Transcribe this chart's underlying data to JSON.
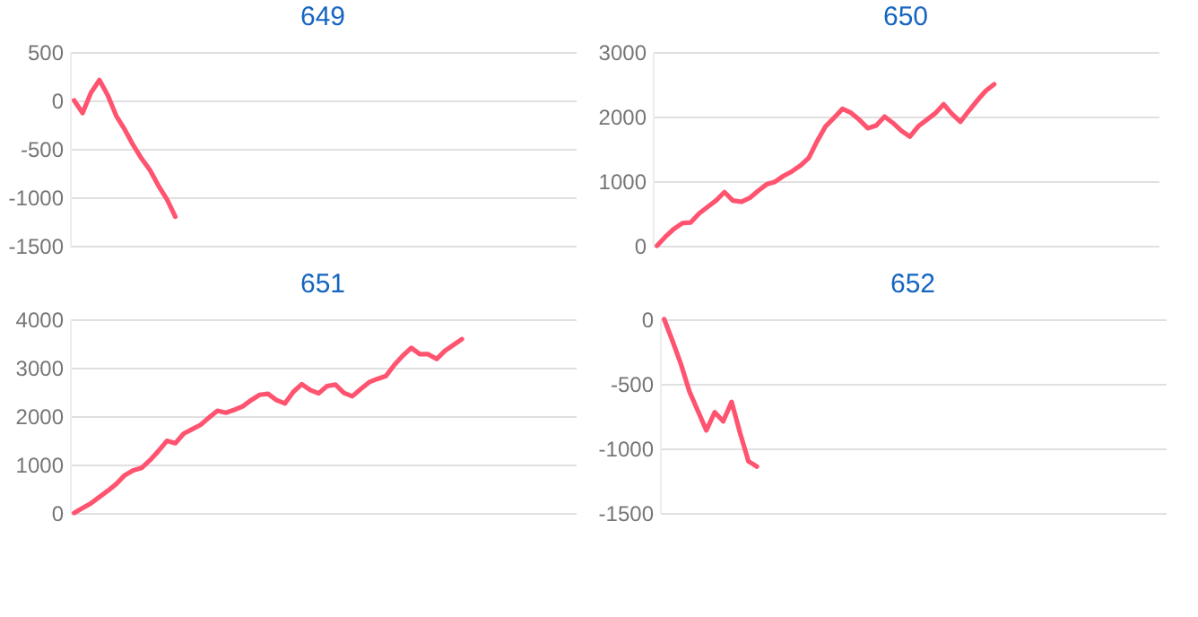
{
  "chart_data": [
    {
      "type": "line",
      "title": "649",
      "categories": [
        null,
        null,
        null,
        null,
        null,
        null,
        null,
        null,
        null,
        null,
        null,
        null,
        null,
        null,
        null,
        null,
        null,
        null,
        null,
        null,
        null,
        null,
        null,
        null,
        null,
        null,
        null,
        null,
        null,
        null,
        null,
        null,
        null,
        null,
        null,
        null,
        null,
        null,
        null,
        null,
        null,
        null,
        null,
        null,
        null,
        null,
        null,
        null,
        null,
        null,
        null,
        null,
        null,
        null,
        null,
        null,
        null,
        null,
        null,
        null
      ],
      "series": [
        {
          "color": "#ff5470",
          "values": [
            0,
            -130,
            80,
            210,
            50,
            -160,
            -300,
            -460,
            -600,
            -720,
            -880,
            -1020,
            -1200,
            null,
            null,
            null,
            null,
            null,
            null,
            null,
            null,
            null,
            null,
            null,
            null,
            null,
            null,
            null,
            null,
            null,
            null,
            null,
            null,
            null,
            null,
            null,
            null,
            null,
            null,
            null,
            null,
            null,
            null,
            null,
            null,
            null,
            null,
            null,
            null,
            null,
            null,
            null,
            null,
            null,
            null,
            null,
            null,
            null,
            null,
            null
          ]
        }
      ],
      "ylim": [
        -1500,
        500
      ],
      "yticks": [
        -1500,
        -1000,
        -500,
        0,
        500
      ],
      "grid": "y",
      "tick_labels": "y",
      "line_style": "solid",
      "marker": "none"
    },
    {
      "type": "line",
      "title": "650",
      "categories": [
        null,
        null,
        null,
        null,
        null,
        null,
        null,
        null,
        null,
        null,
        null,
        null,
        null,
        null,
        null,
        null,
        null,
        null,
        null,
        null,
        null,
        null,
        null,
        null,
        null,
        null,
        null,
        null,
        null,
        null,
        null,
        null,
        null,
        null,
        null,
        null,
        null,
        null,
        null,
        null,
        null,
        null,
        null,
        null,
        null,
        null,
        null,
        null,
        null,
        null,
        null,
        null,
        null,
        null,
        null,
        null,
        null,
        null,
        null,
        null
      ],
      "series": [
        {
          "color": "#ff5470",
          "values": [
            0,
            140,
            260,
            350,
            360,
            500,
            600,
            700,
            830,
            700,
            680,
            740,
            850,
            950,
            990,
            1080,
            1150,
            1240,
            1360,
            1620,
            1850,
            1980,
            2120,
            2060,
            1950,
            1820,
            1860,
            2000,
            1900,
            1780,
            1690,
            1850,
            1950,
            2050,
            2190,
            2040,
            1920,
            2090,
            2250,
            2400,
            2500,
            null,
            null,
            null,
            null,
            null,
            null,
            null,
            null,
            null,
            null,
            null,
            null,
            null,
            null,
            null,
            null,
            null,
            null,
            null
          ]
        }
      ],
      "ylim": [
        0,
        3000
      ],
      "yticks": [
        0,
        1000,
        2000,
        3000
      ],
      "grid": "y",
      "tick_labels": "y",
      "line_style": "solid",
      "marker": "none"
    },
    {
      "type": "line",
      "title": "651",
      "categories": [
        null,
        null,
        null,
        null,
        null,
        null,
        null,
        null,
        null,
        null,
        null,
        null,
        null,
        null,
        null,
        null,
        null,
        null,
        null,
        null,
        null,
        null,
        null,
        null,
        null,
        null,
        null,
        null,
        null,
        null,
        null,
        null,
        null,
        null,
        null,
        null,
        null,
        null,
        null,
        null,
        null,
        null,
        null,
        null,
        null,
        null,
        null,
        null,
        null,
        null,
        null,
        null,
        null,
        null,
        null,
        null,
        null,
        null,
        null,
        null
      ],
      "series": [
        {
          "color": "#ff5470",
          "values": [
            0,
            100,
            200,
            330,
            460,
            600,
            780,
            880,
            930,
            1090,
            1280,
            1490,
            1440,
            1640,
            1730,
            1820,
            1970,
            2110,
            2070,
            2130,
            2200,
            2330,
            2440,
            2460,
            2330,
            2260,
            2500,
            2660,
            2540,
            2470,
            2620,
            2650,
            2480,
            2410,
            2560,
            2700,
            2770,
            2830,
            3060,
            3250,
            3410,
            3280,
            3280,
            3180,
            3350,
            3470,
            3590,
            null,
            null,
            null,
            null,
            null,
            null,
            null,
            null,
            null,
            null,
            null,
            null,
            null
          ]
        }
      ],
      "ylim": [
        0,
        4000
      ],
      "yticks": [
        0,
        1000,
        2000,
        3000,
        4000
      ],
      "grid": "y",
      "tick_labels": "y",
      "line_style": "solid",
      "marker": "none"
    },
    {
      "type": "line",
      "title": "652",
      "categories": [
        null,
        null,
        null,
        null,
        null,
        null,
        null,
        null,
        null,
        null,
        null,
        null,
        null,
        null,
        null,
        null,
        null,
        null,
        null,
        null,
        null,
        null,
        null,
        null,
        null,
        null,
        null,
        null,
        null,
        null,
        null,
        null,
        null,
        null,
        null,
        null,
        null,
        null,
        null,
        null,
        null,
        null,
        null,
        null,
        null,
        null,
        null,
        null,
        null,
        null,
        null,
        null,
        null,
        null,
        null,
        null,
        null,
        null,
        null,
        null
      ],
      "series": [
        {
          "color": "#ff5470",
          "values": [
            0,
            -170,
            -350,
            -560,
            -710,
            -860,
            -720,
            -790,
            -640,
            -880,
            -1100,
            -1140,
            null,
            null,
            null,
            null,
            null,
            null,
            null,
            null,
            null,
            null,
            null,
            null,
            null,
            null,
            null,
            null,
            null,
            null,
            null,
            null,
            null,
            null,
            null,
            null,
            null,
            null,
            null,
            null,
            null,
            null,
            null,
            null,
            null,
            null,
            null,
            null,
            null,
            null,
            null,
            null,
            null,
            null,
            null,
            null,
            null,
            null,
            null,
            null
          ]
        }
      ],
      "ylim": [
        -1500,
        0
      ],
      "yticks": [
        -1500,
        -1000,
        -500,
        0
      ],
      "grid": "y",
      "tick_labels": "y",
      "line_style": "solid",
      "marker": "none"
    }
  ]
}
